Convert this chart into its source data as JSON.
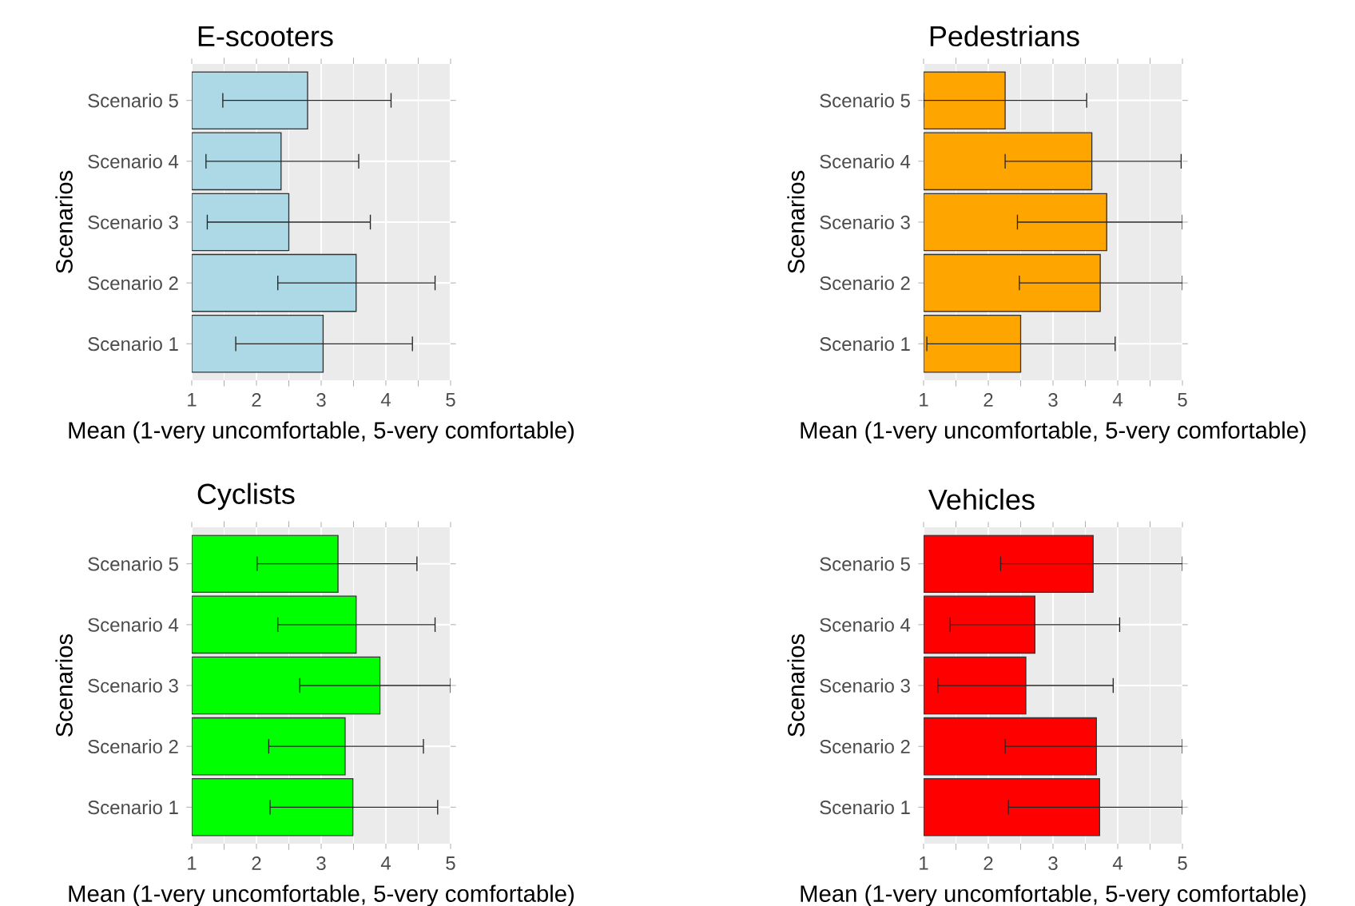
{
  "chart_data": [
    {
      "type": "bar",
      "orientation": "horizontal",
      "title": "E-scooters",
      "xlabel": "Mean (1-very uncomfortable, 5-very comfortable)",
      "ylabel": "Scenarios",
      "categories": [
        "Scenario 5",
        "Scenario 4",
        "Scenario 3",
        "Scenario 2",
        "Scenario 1"
      ],
      "values": [
        2.79,
        2.38,
        2.5,
        3.54,
        3.03
      ],
      "errors": [
        [
          1.48,
          4.08
        ],
        [
          1.22,
          3.58
        ],
        [
          1.24,
          3.76
        ],
        [
          2.33,
          4.76
        ],
        [
          1.68,
          4.41
        ]
      ],
      "color": "#add8e6",
      "xlim": [
        1,
        5
      ],
      "xticks": [
        1,
        2,
        3,
        4,
        5
      ],
      "grid": true
    },
    {
      "type": "bar",
      "orientation": "horizontal",
      "title": "Pedestrians",
      "xlabel": "Mean (1-very uncomfortable, 5-very comfortable)",
      "ylabel": "Scenarios",
      "categories": [
        "Scenario 5",
        "Scenario 4",
        "Scenario 3",
        "Scenario 2",
        "Scenario 1"
      ],
      "values": [
        2.26,
        3.6,
        3.83,
        3.73,
        2.5
      ],
      "errors": [
        [
          1,
          3.52
        ],
        [
          2.26,
          4.98
        ],
        [
          2.45,
          5
        ],
        [
          2.48,
          5
        ],
        [
          1.05,
          3.96
        ]
      ],
      "color": "#ffa500",
      "xlim": [
        1,
        5
      ],
      "xticks": [
        1,
        2,
        3,
        4,
        5
      ],
      "grid": true
    },
    {
      "type": "bar",
      "orientation": "horizontal",
      "title": "Cyclists",
      "xlabel": "Mean (1-very uncomfortable, 5-very comfortable)",
      "ylabel": "Scenarios",
      "categories": [
        "Scenario 5",
        "Scenario 4",
        "Scenario 3",
        "Scenario 2",
        "Scenario 1"
      ],
      "values": [
        3.26,
        3.54,
        3.91,
        3.37,
        3.49
      ],
      "errors": [
        [
          2.01,
          4.48
        ],
        [
          2.33,
          4.76
        ],
        [
          2.67,
          5
        ],
        [
          2.19,
          4.58
        ],
        [
          2.21,
          4.8
        ]
      ],
      "color": "#00ff00",
      "xlim": [
        1,
        5
      ],
      "xticks": [
        1,
        2,
        3,
        4,
        5
      ],
      "grid": true
    },
    {
      "type": "bar",
      "orientation": "horizontal",
      "title": "Vehicles",
      "xlabel": "Mean (1-very uncomfortable, 5-very comfortable)",
      "ylabel": "Scenarios",
      "categories": [
        "Scenario 5",
        "Scenario 4",
        "Scenario 3",
        "Scenario 2",
        "Scenario 1"
      ],
      "values": [
        3.62,
        2.72,
        2.58,
        3.67,
        3.72
      ],
      "errors": [
        [
          2.19,
          5
        ],
        [
          1.41,
          4.03
        ],
        [
          1.22,
          3.93
        ],
        [
          2.26,
          5
        ],
        [
          2.31,
          5
        ]
      ],
      "color": "#ff0000",
      "xlim": [
        1,
        5
      ],
      "xticks": [
        1,
        2,
        3,
        4,
        5
      ],
      "grid": true
    }
  ]
}
